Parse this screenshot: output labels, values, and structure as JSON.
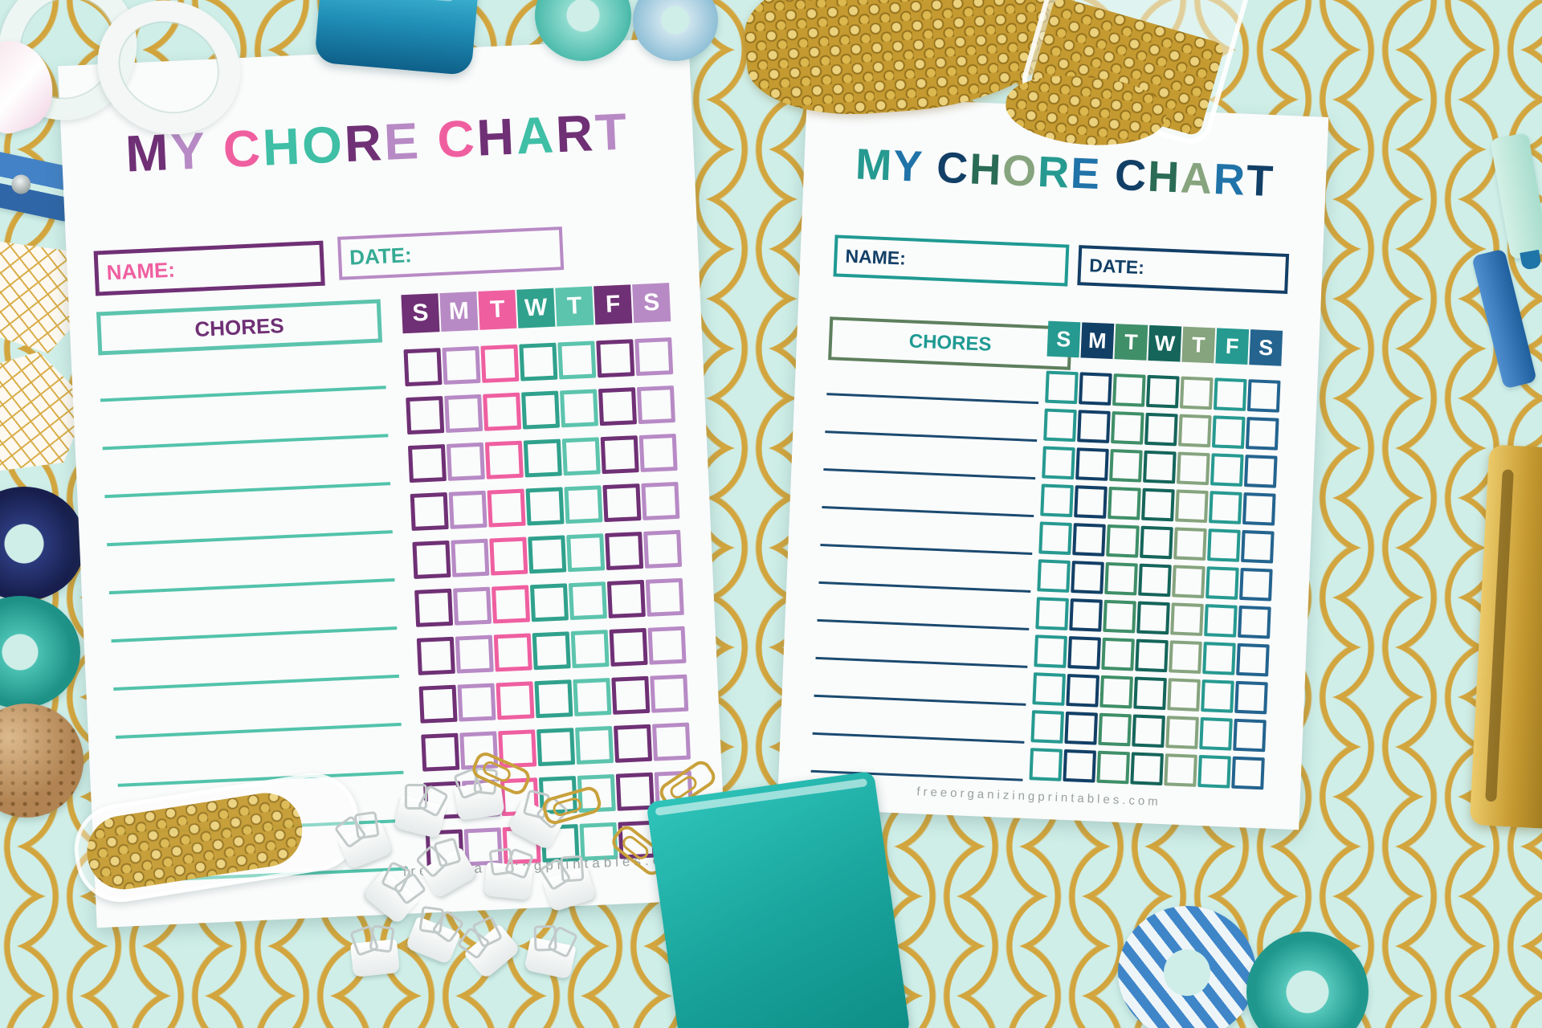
{
  "photo": {
    "background": {
      "base_color": "#cfeee8",
      "scallop_line_color": "#d2a53e"
    },
    "props": [
      {
        "name": "white-scissors"
      },
      {
        "name": "pink-marble-scissors-handle"
      },
      {
        "name": "teal-stapler"
      },
      {
        "name": "teal-washi-roll-top"
      },
      {
        "name": "aqua-washi-roll-top"
      },
      {
        "name": "gold-thumbtacks-pile"
      },
      {
        "name": "glass-jar-of-gold-thumbtacks"
      },
      {
        "name": "blue-clothespin"
      },
      {
        "name": "gold-geometric-paper-gem"
      },
      {
        "name": "gold-geometric-paper-gem"
      },
      {
        "name": "navy-washi-tape-roll"
      },
      {
        "name": "teal-washi-tape-roll"
      },
      {
        "name": "cork-ball"
      },
      {
        "name": "glass-vial-with-gold-pins"
      },
      {
        "name": "white-binder-clips-pile"
      },
      {
        "name": "gold-paper-clips"
      },
      {
        "name": "teal-notebook"
      },
      {
        "name": "blue-striped-washi-roll"
      },
      {
        "name": "teal-washi-roll-bottom"
      },
      {
        "name": "gold-stapler"
      },
      {
        "name": "mint-pen"
      },
      {
        "name": "blue-pen"
      }
    ]
  },
  "charts": [
    {
      "side": "left",
      "title": "MY CHORE CHART",
      "title_letters": [
        {
          "ch": "M",
          "color": "#6f3075"
        },
        {
          "ch": "Y",
          "color": "#b78ac5"
        },
        {
          "ch": " "
        },
        {
          "ch": "C",
          "color": "#ef5fa0"
        },
        {
          "ch": "H",
          "color": "#3fbfa5"
        },
        {
          "ch": "O",
          "color": "#3fbfa5"
        },
        {
          "ch": "R",
          "color": "#6f3075"
        },
        {
          "ch": "E",
          "color": "#b78ac5"
        },
        {
          "ch": " "
        },
        {
          "ch": "C",
          "color": "#ef5fa0"
        },
        {
          "ch": "H",
          "color": "#6f3075"
        },
        {
          "ch": "A",
          "color": "#3fbfa5"
        },
        {
          "ch": "R",
          "color": "#6f3075"
        },
        {
          "ch": "T",
          "color": "#b78ac5"
        }
      ],
      "name_label": "NAME:",
      "name_label_color": "#ef5fa0",
      "name_box_border": "#6f3075",
      "date_label": "DATE:",
      "date_label_color": "#35ab94",
      "date_box_border": "#b78ac5",
      "chores_label": "CHORES",
      "chores_label_color": "#6f3075",
      "chores_box_border": "#5cc4ad",
      "day_headers": [
        {
          "label": "S",
          "color": "#6f3075"
        },
        {
          "label": "M",
          "color": "#b78ac5"
        },
        {
          "label": "T",
          "color": "#ef5fa0"
        },
        {
          "label": "W",
          "color": "#2fa18c"
        },
        {
          "label": "T",
          "color": "#5cc4ad"
        },
        {
          "label": "F",
          "color": "#6f3075"
        },
        {
          "label": "S",
          "color": "#b78ac5"
        }
      ],
      "grid": {
        "rows": 11,
        "columns": 7,
        "column_colors": [
          "#6f3075",
          "#b78ac5",
          "#ef5fa0",
          "#2fa18c",
          "#5cc4ad",
          "#6f3075",
          "#b78ac5"
        ]
      },
      "chore_line_color": "#52c3ab",
      "chore_line_count": 11,
      "footer": "freeorganizingprintables.com"
    },
    {
      "side": "right",
      "title": "MY CHORE CHART",
      "title_letters": [
        {
          "ch": "M",
          "color": "#269a90"
        },
        {
          "ch": "Y",
          "color": "#2073a8"
        },
        {
          "ch": " "
        },
        {
          "ch": "C",
          "color": "#123f66"
        },
        {
          "ch": "H",
          "color": "#2a6b55"
        },
        {
          "ch": "O",
          "color": "#86a47e"
        },
        {
          "ch": "R",
          "color": "#269a90"
        },
        {
          "ch": "E",
          "color": "#2073a8"
        },
        {
          "ch": " "
        },
        {
          "ch": "C",
          "color": "#123f66"
        },
        {
          "ch": "H",
          "color": "#2a6b55"
        },
        {
          "ch": "A",
          "color": "#86a47e"
        },
        {
          "ch": "R",
          "color": "#2073a8"
        },
        {
          "ch": "T",
          "color": "#123f66"
        }
      ],
      "name_label": "NAME:",
      "name_label_color": "#123f66",
      "name_box_border": "#1f9a92",
      "date_label": "DATE:",
      "date_label_color": "#123f66",
      "date_box_border": "#123f66",
      "chores_label": "CHORES",
      "chores_label_color": "#1f9a92",
      "chores_box_border": "#5d7f5d",
      "day_headers": [
        {
          "label": "S",
          "color": "#269a90"
        },
        {
          "label": "M",
          "color": "#123f66"
        },
        {
          "label": "T",
          "color": "#3f8f68"
        },
        {
          "label": "W",
          "color": "#15655a"
        },
        {
          "label": "T",
          "color": "#86a47e"
        },
        {
          "label": "F",
          "color": "#269a90"
        },
        {
          "label": "S",
          "color": "#24648f"
        }
      ],
      "grid": {
        "rows": 11,
        "columns": 7,
        "column_colors": [
          "#269a90",
          "#123f66",
          "#3f8f68",
          "#15655a",
          "#86a47e",
          "#269a90",
          "#24648f"
        ]
      },
      "chore_line_color": "#1b4a70",
      "chore_line_count": 11,
      "footer": "freeorganizingprintables.com"
    }
  ]
}
